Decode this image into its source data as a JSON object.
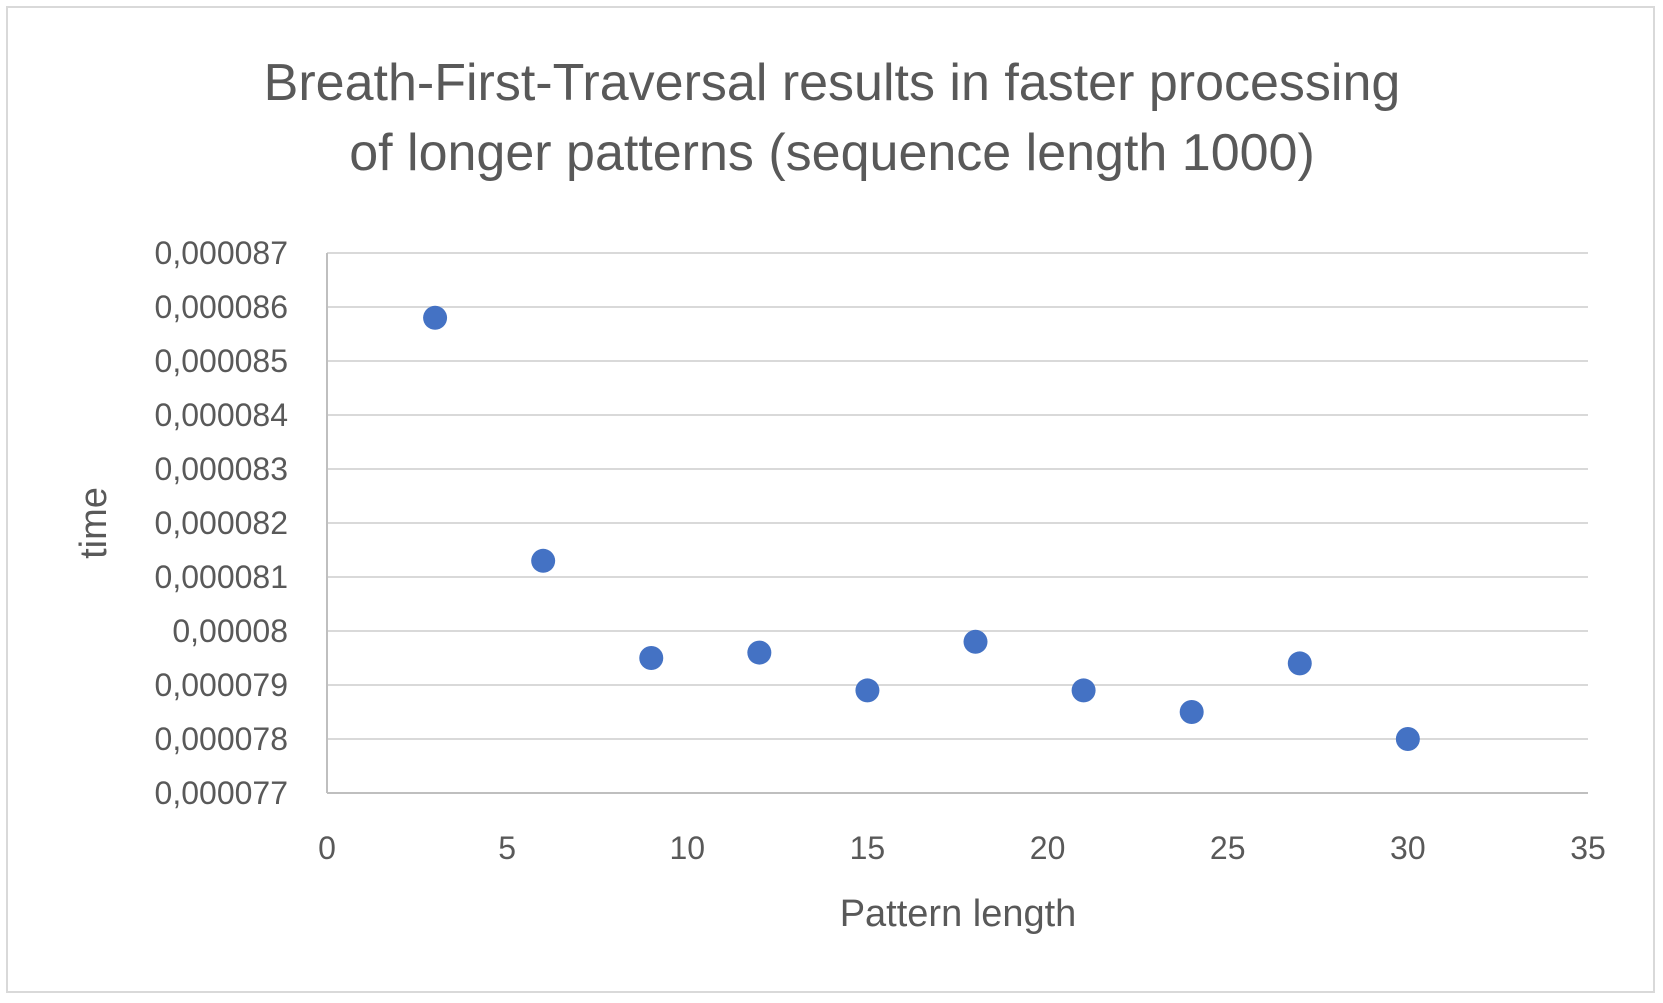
{
  "chart_data": {
    "type": "scatter",
    "title_lines": [
      "Breath-First-Traversal results in faster processing",
      "of longer patterns (sequence length 1000)"
    ],
    "xlabel": "Pattern length",
    "ylabel": "time",
    "xlim": [
      0,
      35
    ],
    "ylim": [
      7.7e-05,
      8.7e-05
    ],
    "x_ticks": [
      0,
      5,
      10,
      15,
      20,
      25,
      30,
      35
    ],
    "x_tick_labels": [
      "0",
      "5",
      "10",
      "15",
      "20",
      "25",
      "30",
      "35"
    ],
    "y_ticks": [
      7.7e-05,
      7.8e-05,
      7.9e-05,
      8e-05,
      8.1e-05,
      8.2e-05,
      8.3e-05,
      8.4e-05,
      8.5e-05,
      8.6e-05,
      8.7e-05
    ],
    "y_tick_labels": [
      "0,000077",
      "0,000078",
      "0,000079",
      "0,00008",
      "0,000081",
      "0,000082",
      "0,000083",
      "0,000084",
      "0,000085",
      "0,000086",
      "0,000087"
    ],
    "grid": "horizontal",
    "legend": "none",
    "series": [
      {
        "color": "#4472c4",
        "points": [
          {
            "x": 3,
            "y": 8.58e-05
          },
          {
            "x": 6,
            "y": 8.13e-05
          },
          {
            "x": 9,
            "y": 7.95e-05
          },
          {
            "x": 12,
            "y": 7.96e-05
          },
          {
            "x": 15,
            "y": 7.89e-05
          },
          {
            "x": 18,
            "y": 7.98e-05
          },
          {
            "x": 21,
            "y": 7.89e-05
          },
          {
            "x": 24,
            "y": 7.85e-05
          },
          {
            "x": 27,
            "y": 7.94e-05
          },
          {
            "x": 30,
            "y": 7.8e-05
          }
        ]
      }
    ]
  }
}
